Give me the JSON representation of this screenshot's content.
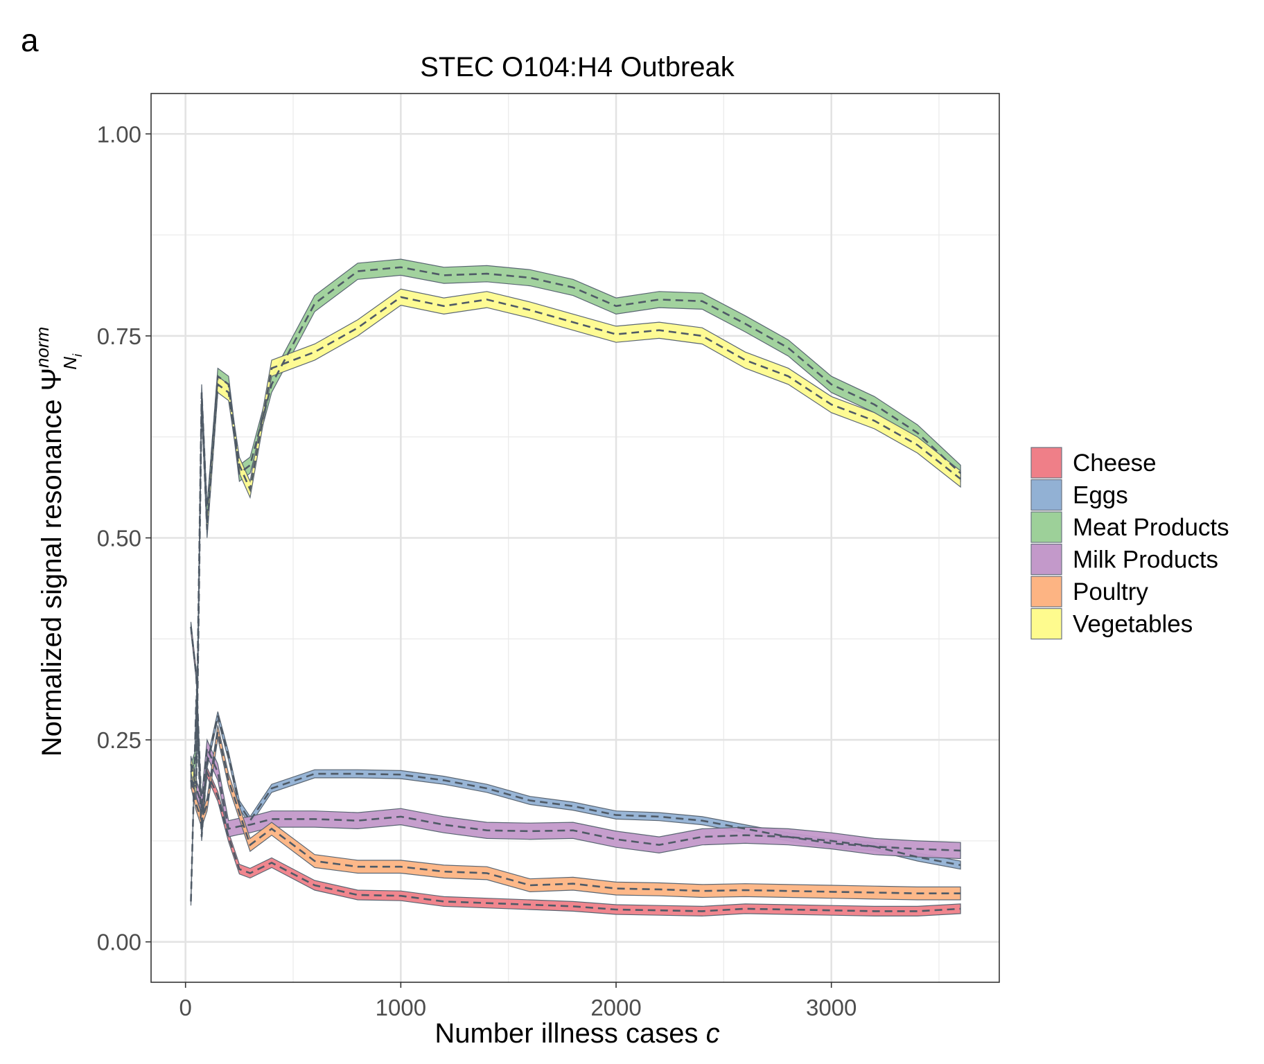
{
  "panel_tag": "a",
  "chart_data": {
    "type": "area",
    "title": "STEC O104:H4 Outbreak",
    "xlabel": "Number illness cases c",
    "xlabel_main": "Number illness cases",
    "xlabel_var": "c",
    "ylabel": "Normalized signal resonance Ψ^norm_{N_i}",
    "ylabel_main": "Normalized signal resonance",
    "ylabel_symbol": "Ψ",
    "ylabel_sup": "norm",
    "ylabel_sub": "N",
    "ylabel_subsub": "i",
    "xlim": [
      -160,
      3780
    ],
    "ylim": [
      -0.05,
      1.05
    ],
    "x_ticks": [
      0,
      1000,
      2000,
      3000
    ],
    "x_tick_labels": [
      "0",
      "1000",
      "2000",
      "3000"
    ],
    "x_minor_ticks": [
      500,
      1500,
      2500,
      3500
    ],
    "y_ticks": [
      0,
      0.25,
      0.5,
      0.75,
      1.0
    ],
    "y_tick_labels": [
      "0.00",
      "0.25",
      "0.50",
      "0.75",
      "1.00"
    ],
    "y_minor_ticks": [
      0.125,
      0.375,
      0.625,
      0.875
    ],
    "grid": true,
    "legend_position": "right",
    "line_style": "dashed mean with shaded band",
    "x": [
      25,
      50,
      75,
      100,
      150,
      200,
      250,
      300,
      400,
      600,
      800,
      1000,
      1200,
      1400,
      1600,
      1800,
      2000,
      2200,
      2400,
      2600,
      2800,
      3000,
      3200,
      3400,
      3600
    ],
    "series": [
      {
        "name": "Cheese",
        "color": "#ef7f88",
        "values": [
          0.39,
          0.33,
          0.16,
          0.21,
          0.18,
          0.13,
          0.09,
          0.085,
          0.098,
          0.07,
          0.058,
          0.057,
          0.05,
          0.048,
          0.046,
          0.044,
          0.04,
          0.039,
          0.038,
          0.041,
          0.04,
          0.039,
          0.038,
          0.038,
          0.041
        ],
        "band": 0.006
      },
      {
        "name": "Eggs",
        "color": "#92b1d4",
        "values": [
          0.05,
          0.3,
          0.13,
          0.22,
          0.28,
          0.23,
          0.17,
          0.15,
          0.19,
          0.208,
          0.208,
          0.207,
          0.2,
          0.19,
          0.175,
          0.168,
          0.157,
          0.155,
          0.15,
          0.14,
          0.13,
          0.122,
          0.118,
          0.105,
          0.095
        ],
        "band": 0.005
      },
      {
        "name": "Meat Products",
        "color": "#9dd099",
        "values": [
          0.21,
          0.23,
          0.68,
          0.53,
          0.7,
          0.69,
          0.58,
          0.59,
          0.69,
          0.79,
          0.83,
          0.835,
          0.825,
          0.827,
          0.822,
          0.81,
          0.787,
          0.795,
          0.793,
          0.765,
          0.735,
          0.69,
          0.665,
          0.63,
          0.58
        ],
        "band": 0.01
      },
      {
        "name": "Milk Products",
        "color": "#c399ca",
        "values": [
          0.2,
          0.19,
          0.17,
          0.24,
          0.21,
          0.14,
          0.143,
          0.145,
          0.152,
          0.152,
          0.15,
          0.155,
          0.145,
          0.138,
          0.137,
          0.138,
          0.127,
          0.12,
          0.13,
          0.132,
          0.13,
          0.125,
          0.118,
          0.115,
          0.113
        ],
        "band": 0.01
      },
      {
        "name": "Poultry",
        "color": "#fdb483",
        "values": [
          0.2,
          0.17,
          0.15,
          0.17,
          0.26,
          0.2,
          0.16,
          0.12,
          0.14,
          0.1,
          0.093,
          0.093,
          0.087,
          0.085,
          0.07,
          0.072,
          0.066,
          0.065,
          0.063,
          0.064,
          0.063,
          0.062,
          0.061,
          0.06,
          0.06
        ],
        "band": 0.008
      },
      {
        "name": "Vegetables",
        "color": "#fefb8e",
        "values": [
          0.22,
          0.19,
          0.67,
          0.51,
          0.69,
          0.68,
          0.59,
          0.56,
          0.71,
          0.73,
          0.76,
          0.798,
          0.787,
          0.795,
          0.782,
          0.767,
          0.752,
          0.757,
          0.75,
          0.72,
          0.7,
          0.665,
          0.645,
          0.615,
          0.573
        ],
        "band": 0.01
      }
    ]
  }
}
